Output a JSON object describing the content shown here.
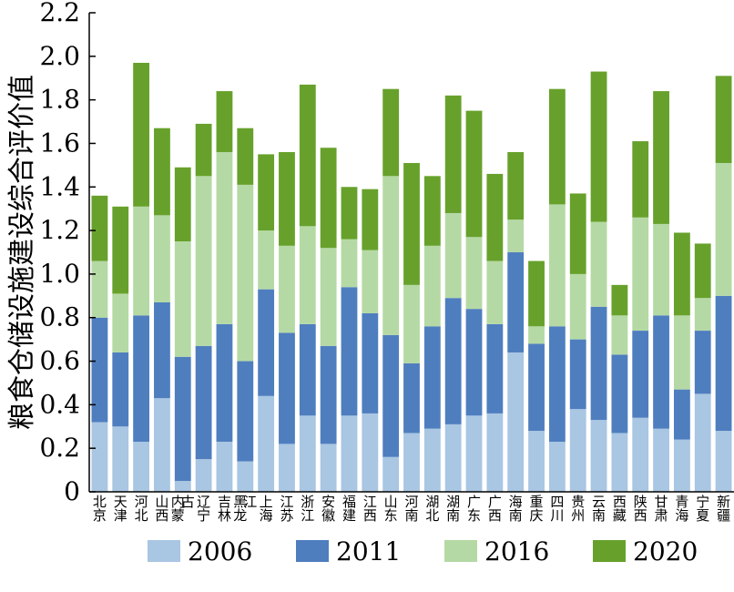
{
  "chart_data": {
    "type": "bar",
    "stacked": true,
    "ylabel": "粮食仓储设施建设综合评价值",
    "xlabel": "",
    "ylim": [
      0,
      2.2
    ],
    "yticks": [
      "0",
      "0.2",
      "0.4",
      "0.6",
      "0.8",
      "1.0",
      "1.2",
      "1.4",
      "1.6",
      "1.8",
      "2.0",
      "2.2"
    ],
    "grid": false,
    "legend_position": "bottom",
    "categories": [
      "北京",
      "天津",
      "河北",
      "山西",
      "内蒙古",
      "辽宁",
      "吉林",
      "黑龙江",
      "上海",
      "江苏",
      "浙江",
      "安徽",
      "福建",
      "江西",
      "山东",
      "河南",
      "湖北",
      "湖南",
      "广东",
      "广西",
      "海南",
      "重庆",
      "四川",
      "贵州",
      "云南",
      "西藏",
      "陕西",
      "甘肃",
      "青海",
      "宁夏",
      "新疆"
    ],
    "series": [
      {
        "name": "2006",
        "color": "#a9c6e2",
        "values": [
          0.32,
          0.3,
          0.23,
          0.43,
          0.05,
          0.15,
          0.23,
          0.14,
          0.44,
          0.22,
          0.35,
          0.22,
          0.35,
          0.36,
          0.16,
          0.27,
          0.29,
          0.31,
          0.35,
          0.36,
          0.64,
          0.28,
          0.23,
          0.38,
          0.33,
          0.27,
          0.34,
          0.29,
          0.24,
          0.45,
          0.28
        ]
      },
      {
        "name": "2011",
        "color": "#4f7ebf",
        "values": [
          0.48,
          0.34,
          0.58,
          0.44,
          0.57,
          0.52,
          0.54,
          0.46,
          0.49,
          0.51,
          0.42,
          0.45,
          0.59,
          0.46,
          0.56,
          0.32,
          0.47,
          0.58,
          0.49,
          0.41,
          0.46,
          0.4,
          0.53,
          0.32,
          0.52,
          0.36,
          0.4,
          0.52,
          0.23,
          0.29,
          0.62
        ]
      },
      {
        "name": "2016",
        "color": "#b5d9a4",
        "values": [
          0.26,
          0.27,
          0.5,
          0.4,
          0.53,
          0.78,
          0.79,
          0.81,
          0.27,
          0.4,
          0.45,
          0.45,
          0.22,
          0.29,
          0.73,
          0.36,
          0.37,
          0.39,
          0.33,
          0.29,
          0.15,
          0.08,
          0.56,
          0.3,
          0.39,
          0.18,
          0.52,
          0.42,
          0.34,
          0.15,
          0.61
        ]
      },
      {
        "name": "2020",
        "color": "#67a12b",
        "values": [
          0.3,
          0.4,
          0.66,
          0.4,
          0.34,
          0.24,
          0.28,
          0.26,
          0.35,
          0.43,
          0.65,
          0.46,
          0.24,
          0.28,
          0.4,
          0.56,
          0.32,
          0.54,
          0.58,
          0.4,
          0.31,
          0.3,
          0.53,
          0.37,
          0.69,
          0.14,
          0.35,
          0.61,
          0.38,
          0.25,
          0.4
        ]
      }
    ]
  }
}
